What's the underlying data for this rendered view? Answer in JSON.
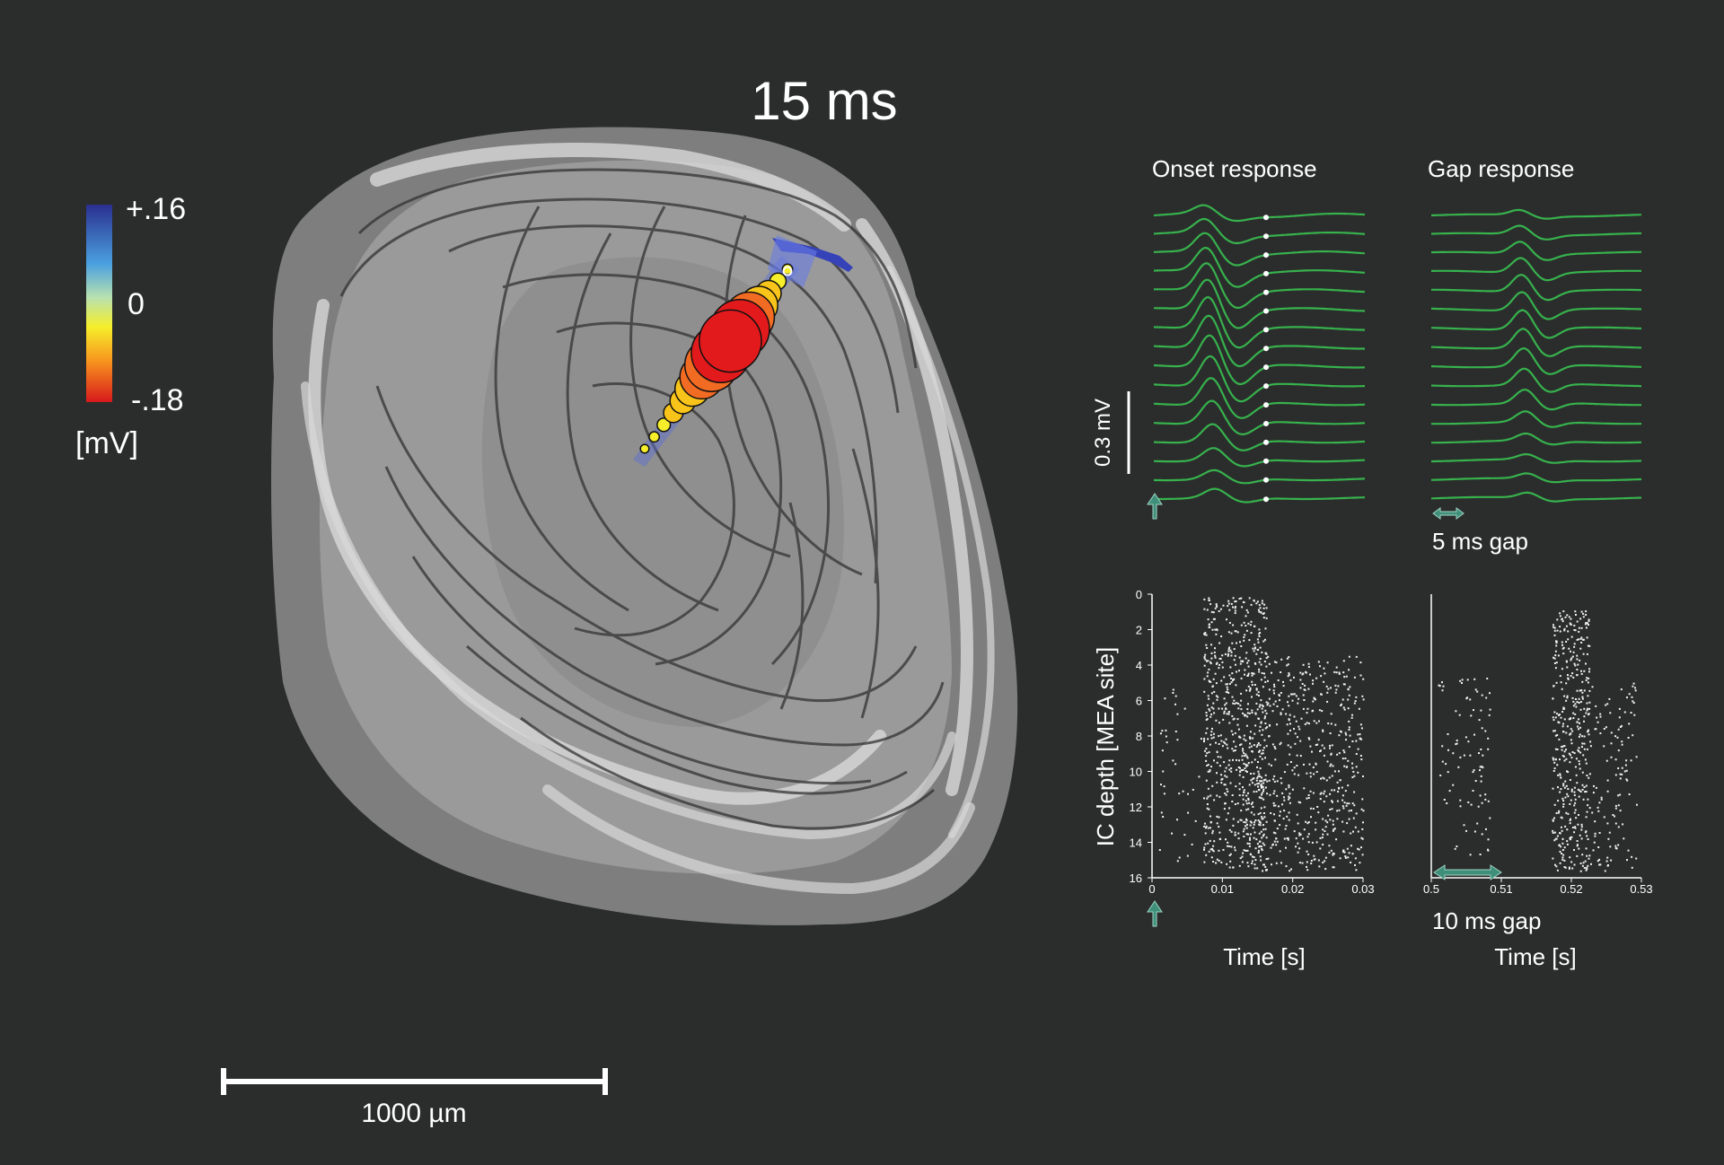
{
  "title": "15 ms",
  "colorbar": {
    "max_label": "+.16",
    "zero_label": "0",
    "min_label": "-.18",
    "unit": "[mV]",
    "range_mv": [
      -0.18,
      0.16
    ],
    "colors": [
      "#2a2f8f",
      "#4aa0e0",
      "#f6ee2a",
      "#f7901e",
      "#d7191c"
    ]
  },
  "scalebar": {
    "label": "1000 µm",
    "length_um": 1000
  },
  "electrode": {
    "amplitudes_mv": [
      -0.005,
      -0.01,
      -0.02,
      -0.04,
      -0.06,
      -0.09,
      -0.12,
      -0.15,
      -0.17,
      -0.18,
      -0.17,
      -0.14,
      -0.1,
      -0.06,
      -0.03,
      -0.01
    ],
    "colors": {
      "strong": "#e31a1c",
      "mid": "#f26b22",
      "weak": "#f8c41a",
      "faint": "#f6ee2a"
    }
  },
  "onset_panel": {
    "title": "Onset response",
    "trace_count": 16,
    "trace_color": "#37b24d",
    "marker_color": "#ffffff",
    "scale_label": "0.3 mV",
    "scale_mv": 0.3,
    "stimulus_arrow_color": "#3f8f7a"
  },
  "gap_panel": {
    "title": "Gap response",
    "trace_count": 16,
    "trace_color": "#37b24d",
    "gap_label": "5 ms gap",
    "gap_ms": 5
  },
  "raster_onset": {
    "ylabel": "IC depth [MEA site]",
    "xlabel": "Time [s]",
    "xlim": [
      0,
      0.03
    ],
    "ylim": [
      0,
      16
    ],
    "xticks": [
      "0",
      "0.01",
      "0.02",
      "0.03"
    ],
    "yticks": [
      "0",
      "2",
      "4",
      "6",
      "8",
      "10",
      "12",
      "14",
      "16"
    ]
  },
  "raster_gap": {
    "xlabel": "Time [s]",
    "gap_label": "10 ms gap",
    "gap_ms": 10,
    "xlim": [
      0.5,
      0.53
    ],
    "xticks": [
      "0.5",
      "0.51",
      "0.52",
      "0.53"
    ]
  }
}
